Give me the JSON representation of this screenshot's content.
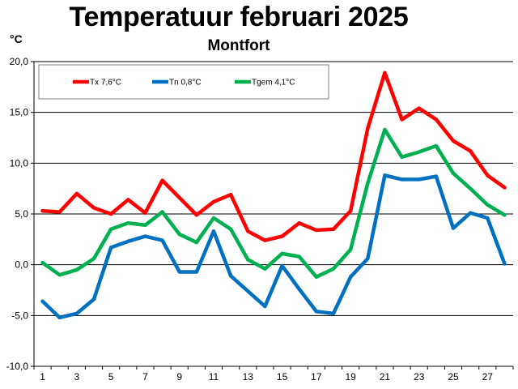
{
  "chart_data": {
    "type": "line",
    "title": "Temperatuur februari 2025",
    "subtitle": "Montfort",
    "ylabel": "°C",
    "xlabel": "",
    "ylim": [
      -10,
      20
    ],
    "yticks": [
      "20,0",
      "15,0",
      "10,0",
      "5,0",
      "0,0",
      "-5,0",
      "-10,0"
    ],
    "xtick_labels": [
      "1",
      "3",
      "5",
      "7",
      "9",
      "11",
      "13",
      "15",
      "17",
      "19",
      "21",
      "23",
      "25",
      "27"
    ],
    "x": [
      1,
      2,
      3,
      4,
      5,
      6,
      7,
      8,
      9,
      10,
      11,
      12,
      13,
      14,
      15,
      16,
      17,
      18,
      19,
      20,
      21,
      22,
      23,
      24,
      25,
      26,
      27,
      28
    ],
    "grid": "horizontal",
    "legend_position": "top-left",
    "series": [
      {
        "name": "Tx 7,6°C",
        "color": "#ff0000",
        "values": [
          5.3,
          5.2,
          7.0,
          5.6,
          5.0,
          6.4,
          5.1,
          8.3,
          6.6,
          4.9,
          6.2,
          6.9,
          3.3,
          2.4,
          2.8,
          4.1,
          3.4,
          3.5,
          5.3,
          13.4,
          18.9,
          14.3,
          15.4,
          14.3,
          12.2,
          11.2,
          8.8,
          7.6
        ]
      },
      {
        "name": "Tn 0,8°C",
        "color": "#0070c0",
        "values": [
          -3.6,
          -5.2,
          -4.8,
          -3.4,
          1.7,
          2.3,
          2.8,
          2.4,
          -0.7,
          -0.7,
          3.3,
          -1.1,
          -2.6,
          -4.1,
          -0.1,
          -2.4,
          -4.6,
          -4.8,
          -1.2,
          0.6,
          8.8,
          8.4,
          8.4,
          8.7,
          3.6,
          5.1,
          4.6,
          0.1
        ]
      },
      {
        "name": "Tgem 4,1°C",
        "color": "#00b050",
        "values": [
          0.2,
          -1.0,
          -0.5,
          0.6,
          3.5,
          4.1,
          3.9,
          5.2,
          3.0,
          2.2,
          4.6,
          3.5,
          0.5,
          -0.4,
          1.1,
          0.8,
          -1.2,
          -0.4,
          1.5,
          8.0,
          13.3,
          10.6,
          11.1,
          11.7,
          9.0,
          7.5,
          5.9,
          4.9
        ]
      }
    ]
  }
}
